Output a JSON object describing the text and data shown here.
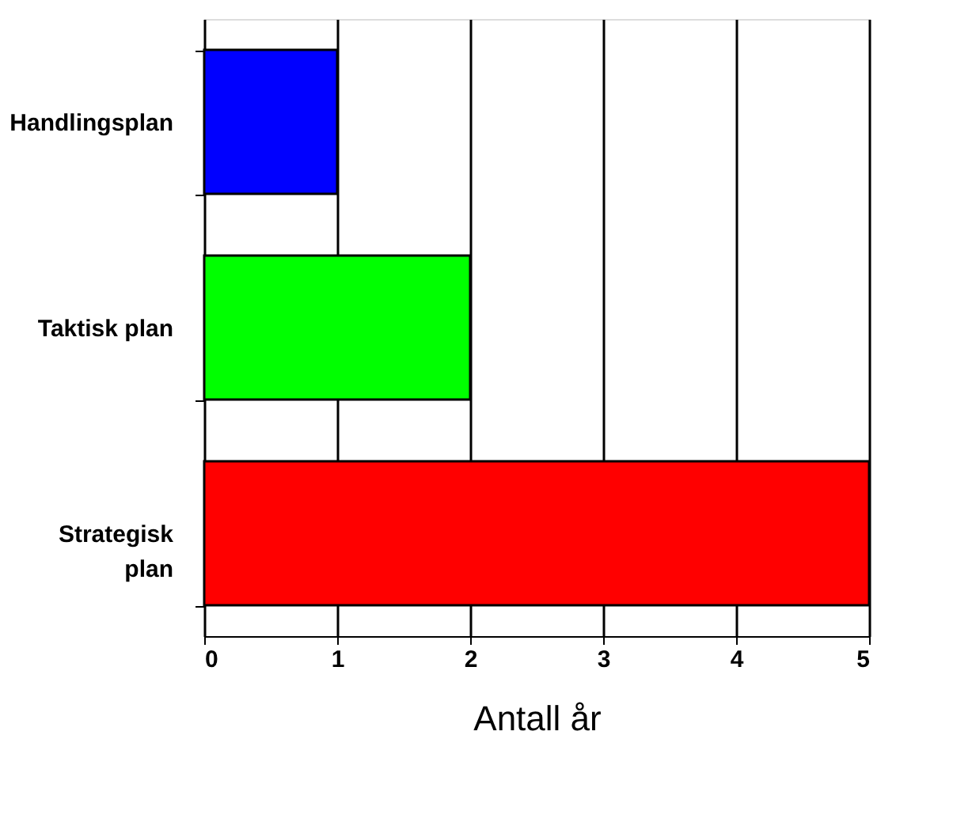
{
  "chart_data": {
    "type": "bar",
    "orientation": "horizontal",
    "categories": [
      "Handlingsplan",
      "Taktisk plan",
      "Strategisk plan"
    ],
    "values": [
      1,
      2,
      5
    ],
    "colors": [
      "#0000ff",
      "#00ff00",
      "#ff0000"
    ],
    "xlim": [
      0,
      5
    ],
    "xticks": [
      0,
      1,
      2,
      3,
      4,
      5
    ],
    "grid": "x",
    "xlabel": "Antall år"
  }
}
